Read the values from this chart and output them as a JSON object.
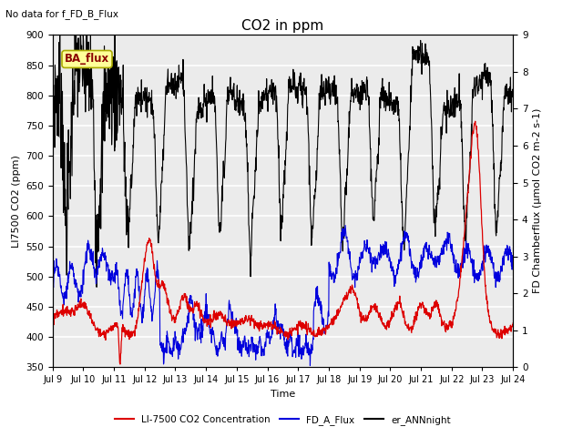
{
  "title": "CO2 in ppm",
  "top_left_text": "No data for f_FD_B_Flux",
  "box_label": "BA_flux",
  "xlabel": "Time",
  "ylabel_left": "LI7500 CO2 (ppm)",
  "ylabel_right": "FD Chamberflux (μmol CO2 m-2 s-1)",
  "ylim_left": [
    350,
    900
  ],
  "ylim_right": [
    0.0,
    9.0
  ],
  "xtick_labels": [
    "Jul 9",
    "Jul 10",
    "Jul 11",
    "Jul 12",
    "Jul 13",
    "Jul 14",
    "Jul 15",
    "Jul 16",
    "Jul 17",
    "Jul 18",
    "Jul 19",
    "Jul 20",
    "Jul 21",
    "Jul 22",
    "Jul 23",
    "Jul 24"
  ],
  "background_color": "#ffffff",
  "plot_bg_color": "#ebebeb",
  "grid_color": "#ffffff",
  "box_facecolor": "#ffff99",
  "box_edgecolor": "#aaaa00",
  "title_fontsize": 11,
  "label_fontsize": 8,
  "tick_fontsize": 7.5
}
